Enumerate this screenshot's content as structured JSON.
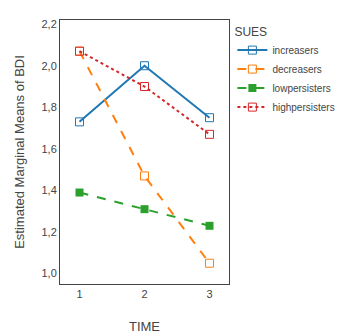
{
  "chart_data": {
    "type": "line",
    "x": [
      1,
      2,
      3
    ],
    "series": [
      {
        "name": "increasers",
        "values": [
          1.73,
          2.0,
          1.75
        ],
        "line_style": "solid",
        "marker": "open square"
      },
      {
        "name": "decreasers",
        "values": [
          2.07,
          1.47,
          1.05
        ],
        "line_style": "dashed",
        "marker": "open square"
      },
      {
        "name": "lowpersisters",
        "values": [
          1.39,
          1.31,
          1.23
        ],
        "line_style": "dashed",
        "marker": "square"
      },
      {
        "name": "highpersisters",
        "values": [
          2.07,
          1.9,
          1.67
        ],
        "line_style": "dotted",
        "marker": "open square"
      }
    ],
    "x_label": "TIME",
    "y_label": "Estimated Marginal Means of BDI",
    "legend_title": "SUES",
    "legend": "right",
    "grid": false,
    "xlim": [
      0.7,
      3.3
    ],
    "xticks": [
      1,
      2,
      3
    ],
    "ylim": [
      0.95,
      2.22
    ],
    "yticks": [
      {
        "value": 1.0,
        "label": "1,0"
      },
      {
        "value": 1.2,
        "label": "1,2"
      },
      {
        "value": 1.4,
        "label": "1,4"
      },
      {
        "value": 1.6,
        "label": "1,6"
      },
      {
        "value": 1.8,
        "label": "1,8"
      },
      {
        "value": 2.0,
        "label": "2,0"
      },
      {
        "value": 2.2,
        "label": "2,2"
      }
    ]
  }
}
